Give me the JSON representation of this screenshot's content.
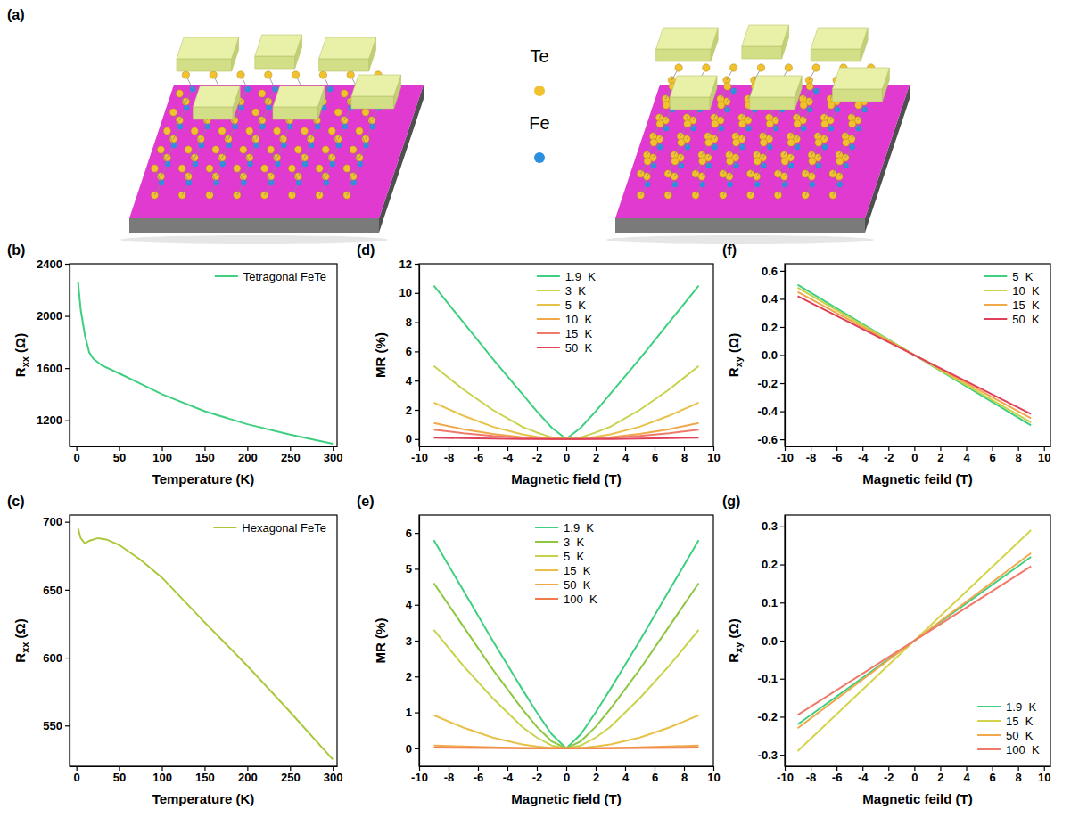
{
  "figure": {
    "label": "(a)",
    "atoms": [
      {
        "name": "Te",
        "color": "#f2c12e"
      },
      {
        "name": "Fe",
        "color": "#2b8fe0"
      }
    ]
  },
  "chart_data": [
    {
      "type": "line",
      "label": "(b)",
      "x_label": "Temperature (K)",
      "y_label": {
        "base": "R",
        "sub": "xx",
        "rest": " (Ω)"
      },
      "xlim": [
        -8,
        305
      ],
      "xticks": [
        0,
        50,
        100,
        150,
        200,
        250,
        300
      ],
      "ylim": [
        1000,
        2400
      ],
      "yticks": [
        1200,
        1600,
        2000,
        2400
      ],
      "legend": "upper right",
      "x": [
        2,
        5,
        10,
        15,
        20,
        30,
        50,
        75,
        100,
        150,
        200,
        250,
        300
      ],
      "series": [
        {
          "name": "Tetragonal FeTe",
          "color": "#3ecf80",
          "values": [
            2260,
            2050,
            1850,
            1720,
            1670,
            1620,
            1560,
            1480,
            1400,
            1270,
            1170,
            1090,
            1020
          ]
        }
      ]
    },
    {
      "type": "line",
      "label": "(c)",
      "x_label": "Temperature (K)",
      "y_label": {
        "base": "R",
        "sub": "xx",
        "rest": " (Ω)"
      },
      "xlim": [
        -8,
        305
      ],
      "xticks": [
        0,
        50,
        100,
        150,
        200,
        250,
        300
      ],
      "ylim": [
        520,
        705
      ],
      "yticks": [
        550,
        600,
        650,
        700
      ],
      "legend": "upper right",
      "x": [
        2,
        5,
        10,
        15,
        25,
        35,
        50,
        75,
        100,
        150,
        200,
        250,
        300
      ],
      "series": [
        {
          "name": "Hexagonal FeTe",
          "color": "#a8c83a",
          "values": [
            695,
            688,
            684,
            686,
            688,
            687,
            683,
            672,
            659,
            626,
            594,
            560,
            525
          ]
        }
      ]
    },
    {
      "type": "line",
      "label": "(d)",
      "x_label": "Magnetic field (T)",
      "y_label": "MR (%)",
      "xlim": [
        -10,
        10
      ],
      "xticks": [
        -10,
        -8,
        -6,
        -4,
        -2,
        0,
        2,
        4,
        6,
        8,
        10
      ],
      "ylim": [
        -0.5,
        12
      ],
      "yticks": [
        0,
        2,
        4,
        6,
        8,
        10,
        12
      ],
      "legend": "upper center",
      "x": [
        -9,
        -7,
        -5,
        -3,
        -2,
        -1,
        0,
        1,
        2,
        3,
        5,
        7,
        9
      ],
      "series": [
        {
          "name": "1.9  K",
          "color": "#3ecf80",
          "values": [
            10.5,
            8.0,
            5.5,
            3.1,
            1.9,
            0.8,
            0,
            0.8,
            1.9,
            3.1,
            5.5,
            8.0,
            10.5
          ]
        },
        {
          "name": "3  K",
          "color": "#c8d24a",
          "values": [
            5.0,
            3.4,
            2.0,
            0.85,
            0.45,
            0.12,
            0,
            0.12,
            0.45,
            0.85,
            2.0,
            3.4,
            5.0
          ]
        },
        {
          "name": "5  K",
          "color": "#e8c14a",
          "values": [
            2.5,
            1.6,
            0.85,
            0.32,
            0.15,
            0.04,
            0,
            0.04,
            0.15,
            0.32,
            0.85,
            1.6,
            2.5
          ]
        },
        {
          "name": "10  K",
          "color": "#f0a84a",
          "values": [
            1.1,
            0.68,
            0.36,
            0.13,
            0.06,
            0.015,
            0,
            0.015,
            0.06,
            0.13,
            0.36,
            0.68,
            1.1
          ]
        },
        {
          "name": "15  K",
          "color": "#f07a6a",
          "values": [
            0.65,
            0.4,
            0.21,
            0.08,
            0.035,
            0.01,
            0,
            0.01,
            0.035,
            0.08,
            0.21,
            0.4,
            0.65
          ]
        },
        {
          "name": "50  K",
          "color": "#e0405a",
          "values": [
            0.1,
            0.06,
            0.03,
            0.01,
            0.005,
            0,
            0,
            0,
            0.005,
            0.01,
            0.03,
            0.06,
            0.1
          ]
        }
      ]
    },
    {
      "type": "line",
      "label": "(e)",
      "x_label": "Magnetic field (T)",
      "y_label": "MR (%)",
      "xlim": [
        -10,
        10
      ],
      "xticks": [
        -10,
        -8,
        -6,
        -4,
        -2,
        0,
        2,
        4,
        6,
        8,
        10
      ],
      "ylim": [
        -0.5,
        6.5
      ],
      "yticks": [
        0,
        1,
        2,
        3,
        4,
        5,
        6
      ],
      "legend": "upper center",
      "x": [
        -9,
        -7,
        -5,
        -3,
        -2,
        -1,
        0,
        1,
        2,
        3,
        5,
        7,
        9
      ],
      "series": [
        {
          "name": "1.9  K",
          "color": "#3ecf80",
          "values": [
            5.8,
            4.4,
            3.0,
            1.65,
            1.0,
            0.4,
            0,
            0.4,
            1.0,
            1.65,
            3.0,
            4.4,
            5.8
          ]
        },
        {
          "name": "3  K",
          "color": "#8dc63f",
          "values": [
            4.6,
            3.4,
            2.2,
            1.1,
            0.6,
            0.2,
            0,
            0.2,
            0.6,
            1.1,
            2.2,
            3.4,
            4.6
          ]
        },
        {
          "name": "5  K",
          "color": "#c8d24a",
          "values": [
            3.3,
            2.3,
            1.4,
            0.6,
            0.3,
            0.08,
            0,
            0.08,
            0.3,
            0.6,
            1.4,
            2.3,
            3.3
          ]
        },
        {
          "name": "15  K",
          "color": "#e8c14a",
          "values": [
            0.92,
            0.58,
            0.3,
            0.11,
            0.05,
            0.012,
            0,
            0.012,
            0.05,
            0.11,
            0.3,
            0.58,
            0.92
          ]
        },
        {
          "name": "50  K",
          "color": "#f0a84a",
          "values": [
            0.08,
            0.05,
            0.025,
            0.01,
            0.005,
            0,
            0,
            0,
            0.005,
            0.01,
            0.025,
            0.05,
            0.08
          ]
        },
        {
          "name": "100  K",
          "color": "#f07a4a",
          "values": [
            0.02,
            0.012,
            0.006,
            0.002,
            0.001,
            0,
            0,
            0,
            0.001,
            0.002,
            0.006,
            0.012,
            0.02
          ]
        }
      ]
    },
    {
      "type": "line",
      "label": "(f)",
      "x_label": "Magnetic feild (T)",
      "y_label": {
        "base": "R",
        "sub": "xy",
        "rest": " (Ω)"
      },
      "xlim": [
        -10,
        10.5
      ],
      "xticks": [
        -10,
        -8,
        -6,
        -4,
        -2,
        0,
        2,
        4,
        6,
        8,
        10
      ],
      "ylim": [
        -0.65,
        0.65
      ],
      "yticks": [
        -0.6,
        -0.4,
        -0.2,
        {
          "value": 0,
          "label": "0.0"
        },
        0.2,
        0.4,
        0.6
      ],
      "legend": "upper right",
      "x": [
        -9,
        9
      ],
      "series": [
        {
          "name": "5  K",
          "color": "#3ecf80",
          "values": [
            0.5,
            -0.5
          ]
        },
        {
          "name": "10  K",
          "color": "#c8d24a",
          "values": [
            0.48,
            -0.48
          ]
        },
        {
          "name": "15  K",
          "color": "#f0a84a",
          "values": [
            0.45,
            -0.45
          ]
        },
        {
          "name": "50  K",
          "color": "#e0405a",
          "values": [
            0.42,
            -0.42
          ]
        }
      ]
    },
    {
      "type": "line",
      "label": "(g)",
      "x_label": "Magnetic feild (T)",
      "y_label": {
        "base": "R",
        "sub": "xy",
        "rest": " (Ω)"
      },
      "xlim": [
        -10,
        10.5
      ],
      "xticks": [
        -10,
        -8,
        -6,
        -4,
        -2,
        0,
        2,
        4,
        6,
        8,
        10
      ],
      "ylim": [
        -0.33,
        0.33
      ],
      "yticks": [
        -0.3,
        -0.2,
        -0.1,
        {
          "value": 0,
          "label": "0.0"
        },
        0.1,
        0.2,
        0.3
      ],
      "legend": "lower right",
      "x": [
        -9,
        9
      ],
      "series": [
        {
          "name": "1.9  K",
          "color": "#3ecf80",
          "values": [
            -0.22,
            0.22
          ]
        },
        {
          "name": "15  K",
          "color": "#d4d44a",
          "values": [
            -0.29,
            0.29
          ]
        },
        {
          "name": "50  K",
          "color": "#f0a84a",
          "values": [
            -0.23,
            0.23
          ]
        },
        {
          "name": "100  K",
          "color": "#f07a6a",
          "values": [
            -0.195,
            0.195
          ]
        }
      ]
    }
  ]
}
